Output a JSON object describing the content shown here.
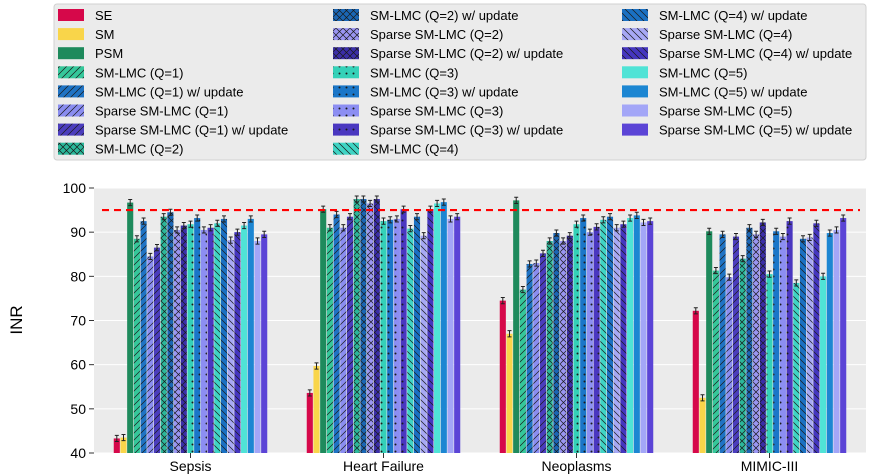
{
  "chart_data": {
    "type": "bar",
    "ylabel": "INR",
    "ylim": [
      40,
      100
    ],
    "yticks": [
      40,
      50,
      60,
      70,
      80,
      90,
      100
    ],
    "grid": true,
    "legend_position": "top",
    "reference_line": {
      "value": 95,
      "color": "#ff0000",
      "style": "dashed"
    },
    "categories": [
      "Sepsis",
      "Heart Failure",
      "Neoplasms",
      "MIMIC-III"
    ],
    "series": [
      {
        "name": "SE",
        "color": "#d6084a",
        "hatch": "none",
        "values": [
          43.3,
          53.6,
          74.5,
          72.2
        ]
      },
      {
        "name": "SM",
        "color": "#f9d54a",
        "hatch": "none",
        "values": [
          43.5,
          59.7,
          67.0,
          52.5
        ]
      },
      {
        "name": "PSM",
        "color": "#1e8a5c",
        "hatch": "none",
        "values": [
          96.7,
          95.2,
          97.2,
          90.2
        ]
      },
      {
        "name": "SM-LMC (Q=1)",
        "color": "#35c79a",
        "hatch": "diag",
        "values": [
          88.5,
          91.0,
          77.0,
          81.3
        ]
      },
      {
        "name": "SM-LMC (Q=1) w/ update",
        "color": "#1f73c4",
        "hatch": "diag",
        "values": [
          92.5,
          94.0,
          82.8,
          89.5
        ]
      },
      {
        "name": "Sparse SM-LMC (Q=1)",
        "color": "#8a8df0",
        "hatch": "diag",
        "values": [
          84.5,
          91.0,
          83.0,
          79.8
        ]
      },
      {
        "name": "Sparse SM-LMC (Q=1) w/ update",
        "color": "#4b3dbd",
        "hatch": "diag",
        "values": [
          86.5,
          93.5,
          85.2,
          89.0
        ]
      },
      {
        "name": "SM-LMC (Q=2)",
        "color": "#2bb79a",
        "hatch": "cross",
        "values": [
          93.5,
          97.5,
          88.0,
          84.0
        ]
      },
      {
        "name": "SM-LMC (Q=2) w/ update",
        "color": "#1a66b5",
        "hatch": "cross",
        "values": [
          94.5,
          97.5,
          89.8,
          91.0
        ]
      },
      {
        "name": "Sparse SM-LMC (Q=2)",
        "color": "#9a95f2",
        "hatch": "cross",
        "values": [
          90.5,
          96.5,
          88.0,
          89.5
        ]
      },
      {
        "name": "Sparse SM-LMC (Q=2) w/ update",
        "color": "#3b2ea8",
        "hatch": "cross",
        "values": [
          91.5,
          97.5,
          89.2,
          92.2
        ]
      },
      {
        "name": "SM-LMC (Q=3)",
        "color": "#34d1b8",
        "hatch": "dots",
        "values": [
          91.8,
          92.5,
          91.8,
          80.5
        ]
      },
      {
        "name": "SM-LMC (Q=3) w/ update",
        "color": "#1a76c8",
        "hatch": "dots",
        "values": [
          93.2,
          92.8,
          93.2,
          90.2
        ]
      },
      {
        "name": "Sparse SM-LMC (Q=3)",
        "color": "#8c8ef2",
        "hatch": "dots",
        "values": [
          90.5,
          93.0,
          90.0,
          89.0
        ]
      },
      {
        "name": "Sparse SM-LMC (Q=3) w/ update",
        "color": "#4a37c0",
        "hatch": "dots",
        "values": [
          91.0,
          95.2,
          91.2,
          92.5
        ]
      },
      {
        "name": "SM-LMC (Q=4)",
        "color": "#3fd4c4",
        "hatch": "backdiag",
        "values": [
          92.0,
          90.8,
          92.8,
          78.5
        ]
      },
      {
        "name": "SM-LMC (Q=4) w/ update",
        "color": "#1a70c2",
        "hatch": "backdiag",
        "values": [
          93.0,
          93.5,
          93.5,
          88.5
        ]
      },
      {
        "name": "Sparse SM-LMC (Q=4)",
        "color": "#a7a8f4",
        "hatch": "backdiag",
        "values": [
          88.2,
          89.2,
          91.0,
          88.8
        ]
      },
      {
        "name": "Sparse SM-LMC (Q=4) w/ update",
        "color": "#4536bf",
        "hatch": "backdiag",
        "values": [
          90.0,
          95.2,
          91.8,
          92.0
        ]
      },
      {
        "name": "SM-LMC (Q=5)",
        "color": "#4fe3d6",
        "hatch": "none",
        "values": [
          91.5,
          96.5,
          93.2,
          80.0
        ]
      },
      {
        "name": "SM-LMC (Q=5) w/ update",
        "color": "#1c86d2",
        "hatch": "none",
        "values": [
          93.0,
          96.8,
          93.8,
          89.8
        ]
      },
      {
        "name": "Sparse SM-LMC (Q=5)",
        "color": "#a3a6f7",
        "hatch": "none",
        "values": [
          88.0,
          93.0,
          92.2,
          90.5
        ]
      },
      {
        "name": "Sparse SM-LMC (Q=5) w/ update",
        "color": "#5b44d6",
        "hatch": "none",
        "values": [
          89.5,
          93.5,
          92.5,
          93.2
        ]
      }
    ]
  }
}
